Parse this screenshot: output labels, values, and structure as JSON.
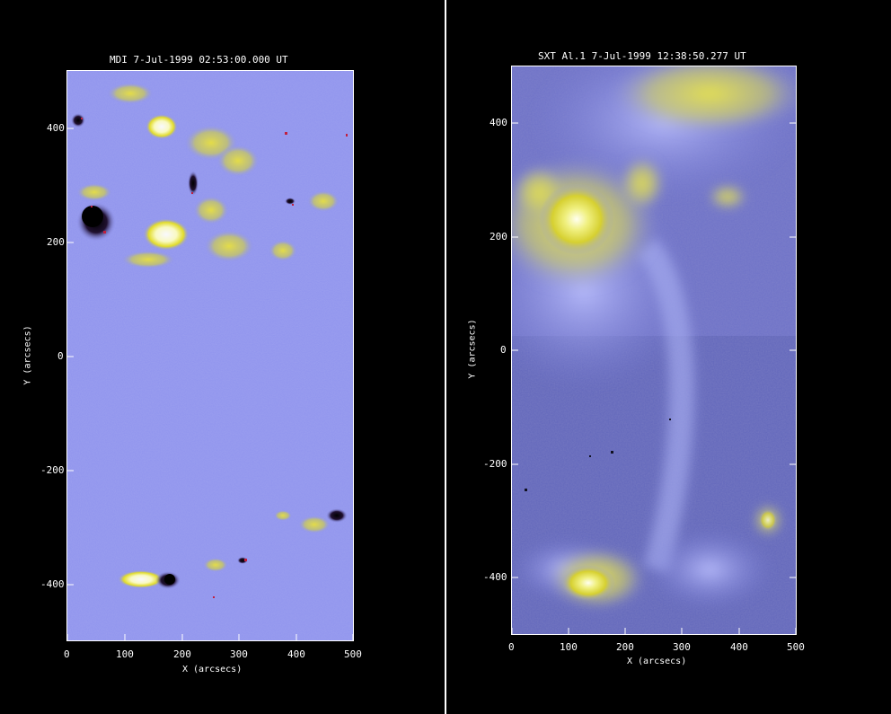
{
  "left_panel": {
    "title": "MDI  7-Jul-1999 02:53:00.000 UT",
    "xlabel": "X (arcsecs)",
    "ylabel": "Y (arcsecs)",
    "xticks": [
      "0",
      "100",
      "200",
      "300",
      "400",
      "500"
    ],
    "yticks": [
      "400",
      "200",
      "0",
      "-200",
      "-400"
    ]
  },
  "right_panel": {
    "title": "SXT  Al.1  7-Jul-1999 12:38:50.277 UT",
    "xlabel": "X (arcsecs)",
    "ylabel": "Y (arcsecs)",
    "xticks": [
      "0",
      "100",
      "200",
      "300",
      "400",
      "500"
    ],
    "yticks": [
      "400",
      "200",
      "0",
      "-200",
      "-400"
    ]
  },
  "colors": {
    "background": "#000000",
    "field_blue": "#8f93ee",
    "bright_yellow": "#e0e020",
    "dark": "#1a1a3a"
  }
}
